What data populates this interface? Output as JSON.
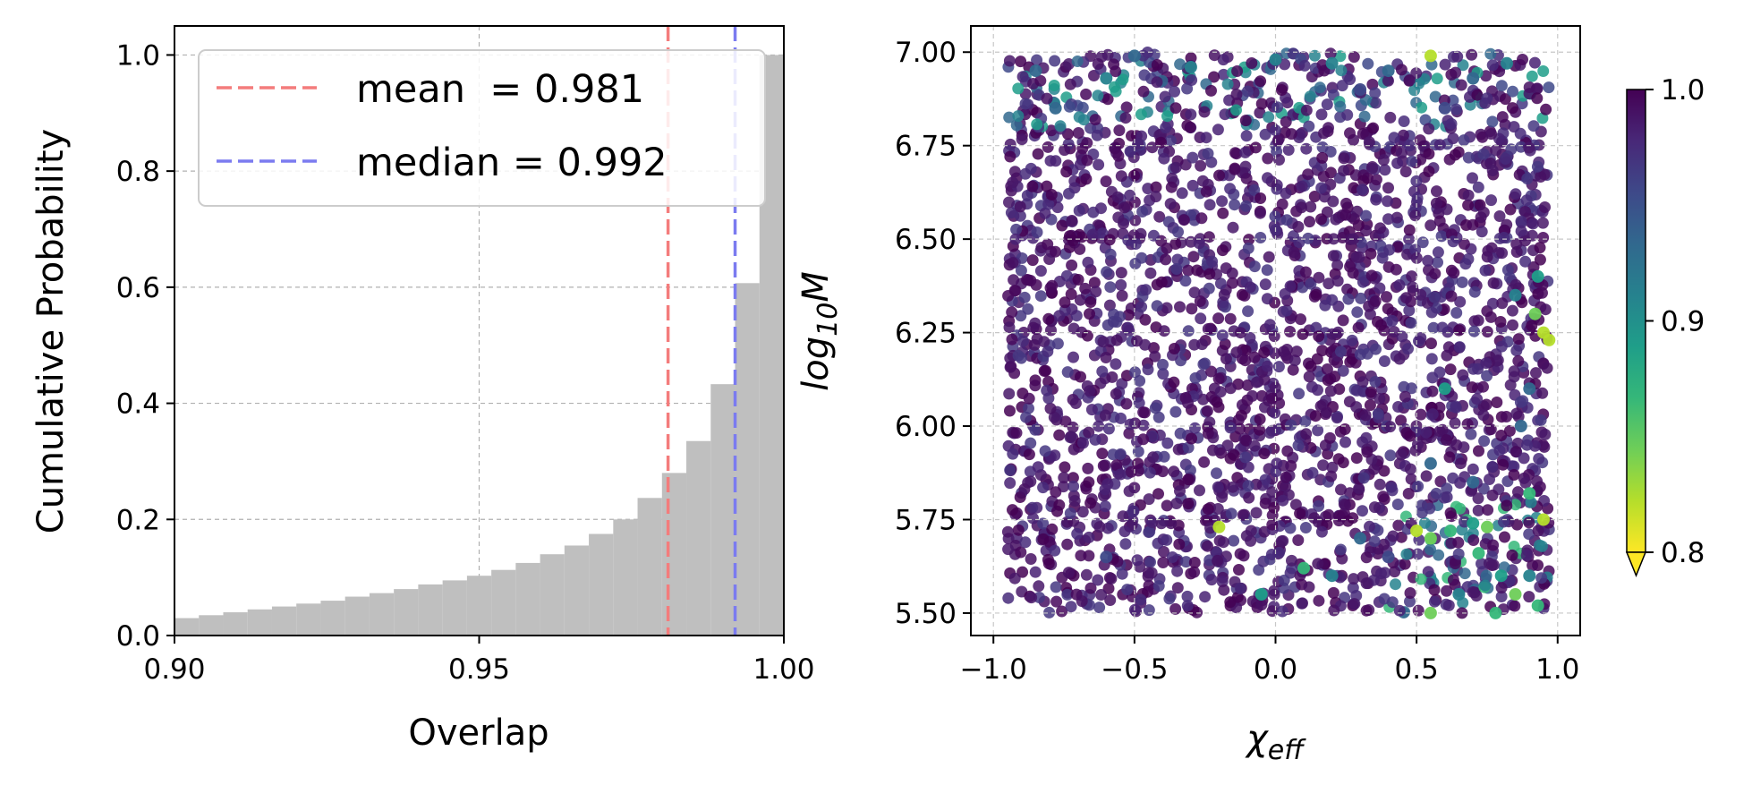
{
  "chart_data": [
    {
      "type": "bar",
      "subtype": "cumulative-histogram",
      "xlabel": "Overlap",
      "ylabel": "Cumulative Probability",
      "xlim": [
        0.9,
        1.0
      ],
      "ylim": [
        0.0,
        1.05
      ],
      "xticks": [
        "0.90",
        "0.95",
        "1.00"
      ],
      "yticks": [
        "0.0",
        "0.2",
        "0.4",
        "0.6",
        "0.8",
        "1.0"
      ],
      "grid": true,
      "bar_color": "#bfbfbf",
      "bin_width": 0.004,
      "bin_edges_start": [
        0.9,
        0.904,
        0.908,
        0.912,
        0.916,
        0.92,
        0.924,
        0.928,
        0.932,
        0.936,
        0.94,
        0.944,
        0.948,
        0.952,
        0.956,
        0.96,
        0.964,
        0.968,
        0.972,
        0.976,
        0.98,
        0.984,
        0.988,
        0.992,
        0.996
      ],
      "values": [
        0.03,
        0.035,
        0.04,
        0.045,
        0.05,
        0.055,
        0.06,
        0.067,
        0.073,
        0.08,
        0.088,
        0.095,
        0.103,
        0.113,
        0.125,
        0.14,
        0.155,
        0.175,
        0.2,
        0.237,
        0.28,
        0.335,
        0.433,
        0.607,
        1.0
      ],
      "vlines": [
        {
          "x": 0.981,
          "color": "#f47c7c",
          "label": "mean  = 0.981"
        },
        {
          "x": 0.992,
          "color": "#7b7bf0",
          "label": "median = 0.992"
        }
      ],
      "legend_location": "upper-left"
    },
    {
      "type": "scatter",
      "xlabel_main": "χ",
      "xlabel_sub": "eff",
      "ylabel_main": "log",
      "ylabel_sub": "10",
      "ylabel_tail": "M",
      "xlim": [
        -1.08,
        1.08
      ],
      "ylim": [
        5.44,
        7.07
      ],
      "xticks": [
        "−1.0",
        "−0.5",
        "0.0",
        "0.5",
        "1.0"
      ],
      "xtick_values": [
        -1.0,
        -0.5,
        0.0,
        0.5,
        1.0
      ],
      "yticks": [
        "5.50",
        "5.75",
        "6.00",
        "6.25",
        "6.50",
        "6.75",
        "7.00"
      ],
      "ytick_values": [
        5.5,
        5.75,
        6.0,
        6.25,
        6.5,
        6.75,
        7.0
      ],
      "grid": true,
      "colormap": "viridis_r",
      "colorbar": {
        "range": [
          0.8,
          1.0
        ],
        "ticks": [
          "0.8",
          "0.9",
          "1.0"
        ],
        "extend": "min",
        "colors": [
          "#fde725",
          "#b5de2b",
          "#6ece58",
          "#35b779",
          "#1f9e89",
          "#26828e",
          "#31688e",
          "#3e4989",
          "#482878",
          "#440154"
        ]
      },
      "points": [
        [
          -0.85,
          6.95,
          0.93
        ],
        [
          -0.78,
          6.85,
          0.94
        ],
        [
          -0.6,
          6.93,
          0.92
        ],
        [
          -0.3,
          6.96,
          0.91
        ],
        [
          0.0,
          6.98,
          0.9
        ],
        [
          0.2,
          6.97,
          0.92
        ],
        [
          0.4,
          6.95,
          0.93
        ],
        [
          0.55,
          6.99,
          0.82
        ],
        [
          0.7,
          6.93,
          0.94
        ],
        [
          0.82,
          6.97,
          0.9
        ],
        [
          -0.5,
          6.99,
          0.93
        ],
        [
          0.3,
          6.9,
          0.95
        ],
        [
          0.6,
          6.85,
          0.95
        ],
        [
          -0.2,
          5.73,
          0.82
        ],
        [
          0.5,
          5.72,
          0.82
        ],
        [
          0.55,
          5.7,
          0.85
        ],
        [
          0.62,
          5.72,
          0.86
        ],
        [
          0.7,
          5.74,
          0.88
        ],
        [
          0.75,
          5.73,
          0.85
        ],
        [
          0.8,
          5.6,
          0.88
        ],
        [
          0.85,
          5.55,
          0.84
        ],
        [
          0.9,
          5.6,
          0.9
        ],
        [
          0.95,
          5.75,
          0.82
        ],
        [
          0.93,
          6.4,
          0.88
        ],
        [
          0.95,
          6.25,
          0.82
        ],
        [
          0.97,
          6.23,
          0.83
        ],
        [
          0.92,
          6.3,
          0.84
        ],
        [
          0.9,
          6.1,
          0.93
        ],
        [
          0.6,
          6.1,
          0.88
        ],
        [
          0.55,
          5.9,
          0.93
        ],
        [
          0.2,
          5.6,
          0.92
        ],
        [
          0.1,
          5.62,
          0.86
        ],
        [
          -0.05,
          5.55,
          0.88
        ],
        [
          0.55,
          5.5,
          0.85
        ],
        [
          0.78,
          5.5,
          0.87
        ],
        [
          0.93,
          5.52,
          0.86
        ],
        [
          0.7,
          5.85,
          0.94
        ],
        [
          0.4,
          5.65,
          0.95
        ],
        [
          0.3,
          5.7,
          0.94
        ],
        [
          -0.6,
          5.65,
          0.95
        ],
        [
          0.9,
          5.82,
          0.86
        ],
        [
          0.72,
          5.66,
          0.87
        ],
        [
          0.85,
          6.35,
          0.9
        ],
        [
          0.87,
          6.0,
          0.93
        ],
        [
          0.65,
          5.55,
          0.9
        ]
      ]
    }
  ]
}
